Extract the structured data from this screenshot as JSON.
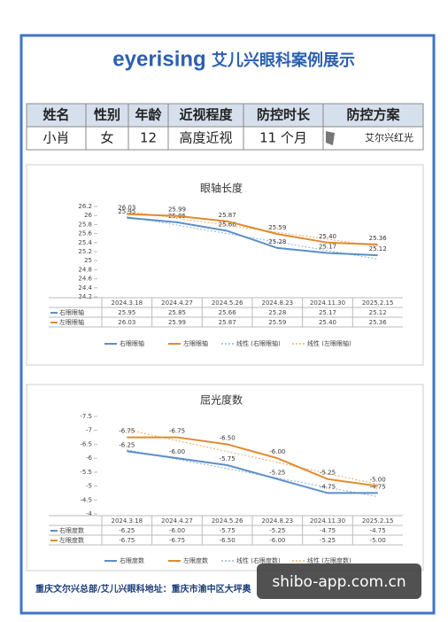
{
  "header": {
    "brand": "eyerising",
    "title": "艾儿兴眼科案例展示"
  },
  "table": {
    "columns": [
      "姓名",
      "性别",
      "年龄",
      "近视程度",
      "防控时长",
      "防控方案"
    ],
    "rows": [
      [
        "小肖",
        "女",
        12,
        "高度近视",
        "11 个月",
        "艾尔兴红光"
      ]
    ]
  },
  "chart_data": [
    {
      "type": "line",
      "title": "眼轴长度",
      "categories": [
        "2024.3.18",
        "2024.4.27",
        "2024.5.26",
        "2024.8.23",
        "2024.11.30",
        "2025.2.15"
      ],
      "series": [
        {
          "name": "右眼眼轴",
          "color": "#5b8fc7",
          "values": [
            25.95,
            25.85,
            25.66,
            25.28,
            25.17,
            25.12
          ],
          "value_labels": [
            "25.95",
            "25.85",
            "25.66",
            "25.28",
            "25.17",
            "25.12"
          ]
        },
        {
          "name": "左眼眼轴",
          "color": "#e08a2e",
          "values": [
            26.03,
            25.99,
            25.87,
            25.59,
            25.4,
            25.36
          ],
          "value_labels": [
            "26.03",
            "25.99",
            "25.87",
            "25.59",
            "25.40",
            "25.36"
          ]
        }
      ],
      "trendlines": [
        "线性 (右眼眼轴)",
        "线性 (左眼眼轴)"
      ],
      "ylim": [
        24.2,
        26.2
      ],
      "yticks": [
        24.2,
        24.4,
        24.6,
        24.8,
        25,
        25.2,
        25.4,
        25.6,
        25.8,
        26,
        26.2
      ],
      "grid": false
    },
    {
      "type": "line",
      "title": "屈光度数",
      "categories": [
        "2024.3.18",
        "2024.4.27",
        "2024.5.26",
        "2024.8.23",
        "2024.11.30",
        "2025.2.15"
      ],
      "series": [
        {
          "name": "右眼度数",
          "color": "#5b8fc7",
          "values": [
            -6.25,
            -6.0,
            -5.75,
            -5.25,
            -4.75,
            -4.75
          ],
          "value_labels": [
            "-6.25",
            "-6.00",
            "-5.75",
            "-5.25",
            "-4.75",
            "-4.75"
          ]
        },
        {
          "name": "左眼度数",
          "color": "#e08a2e",
          "values": [
            -6.75,
            -6.75,
            -6.5,
            -6.0,
            -5.25,
            -5.0
          ],
          "value_labels": [
            "-6.75",
            "-6.75",
            "-6.50",
            "-6.00",
            "-5.25",
            "-5.00"
          ]
        }
      ],
      "trendlines": [
        "线性 (右眼度数)",
        "线性 (左眼度数)"
      ],
      "ylim": [
        -4,
        -7.5
      ],
      "yticks": [
        -7.5,
        -7,
        -6.5,
        -6,
        -5.5,
        -5,
        -4.5,
        -4
      ],
      "grid": false
    }
  ],
  "footer": "重庆文尔兴总部/艾儿兴眼科地址：重庆市渝中区大坪奥",
  "watermark": "shibo-app.com.cn"
}
